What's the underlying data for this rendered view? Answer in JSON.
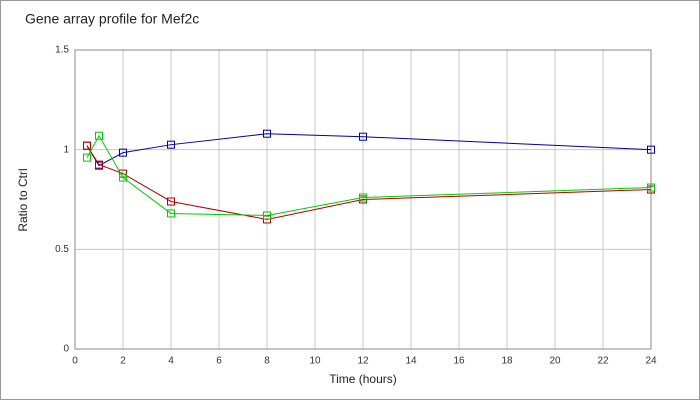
{
  "chart_data": {
    "type": "line",
    "title": "Gene array profile for Mef2c",
    "xlabel": "Time (hours)",
    "ylabel": "Ratio to Ctrl",
    "x": [
      0.5,
      1,
      2,
      4,
      8,
      12,
      24
    ],
    "series": [
      {
        "color": "#0000a0",
        "values": [
          1.02,
          0.92,
          0.985,
          1.025,
          1.08,
          1.065,
          1.0
        ]
      },
      {
        "color": "#b00000",
        "values": [
          1.02,
          0.925,
          0.88,
          0.74,
          0.65,
          0.75,
          0.8
        ]
      },
      {
        "color": "#00cc00",
        "values": [
          0.96,
          1.07,
          0.86,
          0.68,
          0.67,
          0.76,
          0.81
        ]
      }
    ],
    "xlim": [
      0,
      24
    ],
    "xticks": [
      0,
      2,
      4,
      6,
      8,
      10,
      12,
      14,
      16,
      18,
      20,
      22,
      24
    ],
    "ylim": [
      0,
      1.5
    ],
    "yticks": [
      0,
      0.5,
      1,
      1.5
    ],
    "grid": true
  }
}
